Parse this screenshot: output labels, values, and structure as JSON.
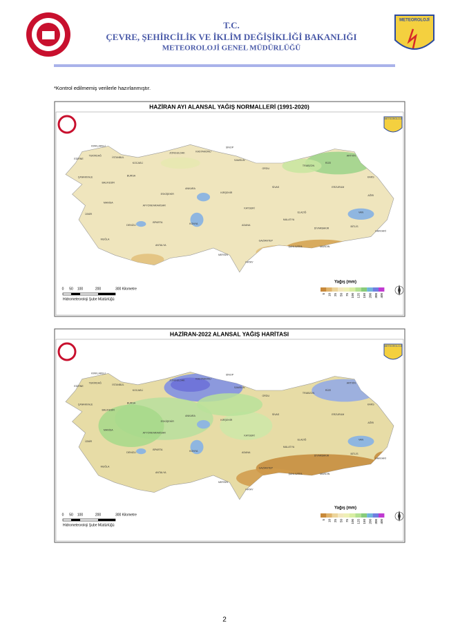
{
  "header": {
    "title": "T.C.",
    "ministry": "ÇEVRE, ŞEHİRCİLİK VE İKLİM DEĞİŞİKLİĞİ BAKANLIĞI",
    "directorate": "METEOROLOJİ GENEL MÜDÜRLÜĞÜ",
    "logo_text": "METEOROLOJİ"
  },
  "note": "*Kontrol edilmemiş verilerle hazırlanmıştır.",
  "maps": [
    {
      "title": "HAZİRAN AYI ALANSAL YAĞIŞ NORMALLERİ (1991-2020)",
      "legend_title": "Yağış (mm)",
      "legend_labels": [
        "5",
        "10",
        "25",
        "50",
        "75",
        "100",
        "125",
        "150",
        "200",
        "300",
        "400"
      ],
      "scale_labels": [
        "0",
        "50",
        "100",
        "200",
        "300 Kilometre"
      ],
      "credit": "Hidrometeoroloji Şube Müdürlüğü",
      "map_logo_text": "METEOROLOJİ"
    },
    {
      "title": "HAZİRAN-2022 ALANSAL YAĞIŞ HARİTASI",
      "legend_title": "Yağış (mm)",
      "legend_labels": [
        "5",
        "10",
        "25",
        "50",
        "75",
        "100",
        "125",
        "150",
        "200",
        "300",
        "400"
      ],
      "scale_labels": [
        "0",
        "50",
        "100",
        "200",
        "300 Kilometre"
      ],
      "credit": "Hidrometeoroloji Şube Müdürlüğü",
      "map_logo_text": "METEOROLOJİ"
    }
  ],
  "cities": [
    "KIRKLARELİ",
    "EDİRNE",
    "TEKİRDAĞ",
    "İSTANBUL",
    "KOCAELİ",
    "ZONGULDAK",
    "KASTAMONU",
    "SİNOP",
    "SAMSUN",
    "ORDU",
    "TRABZON",
    "RİZE",
    "ARTVİN",
    "ERZURUM",
    "KARS",
    "AĞRI",
    "VAN",
    "BURSA",
    "BALIKESİR",
    "ÇANAKKALE",
    "İZMİR",
    "MANİSA",
    "ANKARA",
    "KIRŞEHİR",
    "SİVAS",
    "MALATYA",
    "ELAZIĞ",
    "DİYARBAKIR",
    "MARDİN",
    "ŞANLIURFA",
    "GAZİANTEP",
    "HATAY",
    "ADANA",
    "MERSİN",
    "KONYA",
    "ANTALYA",
    "MUĞLA",
    "DENİZLİ",
    "ISPARTA",
    "KAYSERİ",
    "ESKİŞEHİR",
    "AFYONKARAHİSAR",
    "BİTLİS",
    "HAKKARİ"
  ],
  "page_number": "2"
}
